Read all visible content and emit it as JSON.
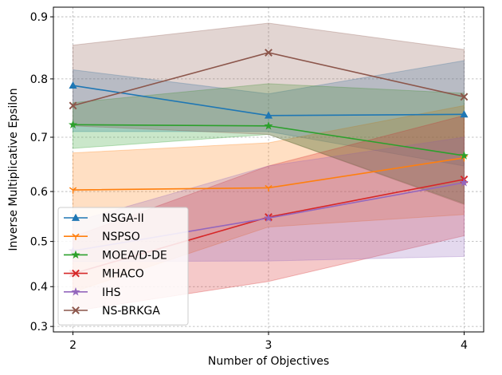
{
  "chart_data": {
    "type": "line",
    "xlabel": "Number of Objectives",
    "ylabel": "Inverse Multiplicative Epsilon",
    "x": [
      2,
      3,
      4
    ],
    "x_ticks": [
      "2",
      "3",
      "4"
    ],
    "y_ticks": [
      "0.3",
      "0.4",
      "0.5",
      "0.6",
      "0.7",
      "0.8",
      "0.9"
    ],
    "y_tick_values": [
      0.3,
      0.4,
      0.5,
      0.6,
      0.7,
      0.8,
      0.9
    ],
    "y_scale": "power",
    "xlim": [
      1.9,
      4.1
    ],
    "ylim": [
      0.285,
      0.915
    ],
    "grid": true,
    "legend_position": "lower-left",
    "series": [
      {
        "name": "NSGA-II",
        "color": "#1f77b4",
        "marker": "triangle",
        "values": [
          0.789,
          0.738,
          0.74
        ],
        "lower": [
          0.71,
          0.71,
          0.648
        ],
        "upper": [
          0.815,
          0.775,
          0.83
        ]
      },
      {
        "name": "NSPSO",
        "color": "#ff7f0e",
        "marker": "tri-down",
        "values": [
          0.603,
          0.607,
          0.663
        ],
        "lower": [
          0.387,
          0.53,
          0.555
        ],
        "upper": [
          0.672,
          0.69,
          0.755
        ]
      },
      {
        "name": "MOEA/D-DE",
        "color": "#2ca02c",
        "marker": "star",
        "values": [
          0.722,
          0.72,
          0.667
        ],
        "lower": [
          0.68,
          0.705,
          0.577
        ],
        "upper": [
          0.76,
          0.792,
          0.776
        ]
      },
      {
        "name": "MHACO",
        "color": "#d62728",
        "marker": "x",
        "values": [
          0.43,
          0.55,
          0.623
        ],
        "lower": [
          0.34,
          0.412,
          0.512
        ],
        "upper": [
          0.51,
          0.648,
          0.738
        ]
      },
      {
        "name": "IHS",
        "color": "#9467bd",
        "marker": "star",
        "values": [
          0.48,
          0.548,
          0.617
        ],
        "lower": [
          0.457,
          0.458,
          0.468
        ],
        "upper": [
          0.54,
          0.648,
          0.7
        ]
      },
      {
        "name": "NS-BRKGA",
        "color": "#8c564b",
        "marker": "x",
        "values": [
          0.755,
          0.843,
          0.77
        ],
        "lower": [
          0.72,
          0.705,
          0.575
        ],
        "upper": [
          0.855,
          0.89,
          0.848
        ]
      }
    ]
  }
}
